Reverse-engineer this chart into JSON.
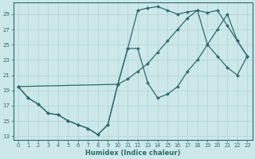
{
  "bg_color": "#cce8ea",
  "grid_color": "#b8d8da",
  "line_color": "#2d6b6b",
  "xlabel": "Humidex (Indice chaleur)",
  "xlim": [
    -0.5,
    23.5
  ],
  "ylim": [
    12.5,
    30.5
  ],
  "xticks": [
    0,
    1,
    2,
    3,
    4,
    5,
    6,
    7,
    8,
    9,
    10,
    11,
    12,
    13,
    14,
    15,
    16,
    17,
    18,
    19,
    20,
    21,
    22,
    23
  ],
  "yticks": [
    13,
    15,
    17,
    19,
    21,
    23,
    25,
    27,
    29
  ],
  "curve1_x": [
    0,
    1,
    2,
    3,
    4,
    5,
    6,
    7,
    8,
    9,
    10,
    11,
    12,
    13,
    14,
    15,
    16,
    17,
    18,
    19,
    20,
    21,
    22,
    23
  ],
  "curve1_y": [
    19.5,
    18.0,
    17.2,
    16.0,
    15.8,
    15.0,
    14.5,
    14.0,
    13.2,
    14.5,
    19.8,
    24.5,
    24.5,
    20.0,
    18.0,
    18.5,
    19.5,
    21.5,
    23.0,
    25.0,
    27.0,
    29.0,
    25.5,
    23.5
  ],
  "curve2_x": [
    0,
    1,
    2,
    3,
    4,
    5,
    6,
    7,
    8,
    9,
    10,
    11,
    12,
    13,
    14,
    15,
    16,
    17,
    18,
    19,
    20,
    21,
    22,
    23
  ],
  "curve2_y": [
    19.5,
    18.0,
    17.2,
    16.0,
    15.8,
    15.0,
    14.5,
    14.0,
    13.2,
    14.5,
    19.8,
    24.5,
    29.5,
    29.8,
    30.0,
    29.5,
    29.0,
    29.3,
    29.5,
    29.2,
    29.5,
    27.5,
    25.5,
    23.5
  ],
  "curve3_x": [
    0,
    10,
    11,
    12,
    13,
    14,
    15,
    16,
    17,
    18,
    19,
    20,
    21,
    22,
    23
  ],
  "curve3_y": [
    19.5,
    19.8,
    20.5,
    21.5,
    22.5,
    24.0,
    25.5,
    27.0,
    28.5,
    29.5,
    25.0,
    23.5,
    22.0,
    21.0,
    23.5
  ]
}
